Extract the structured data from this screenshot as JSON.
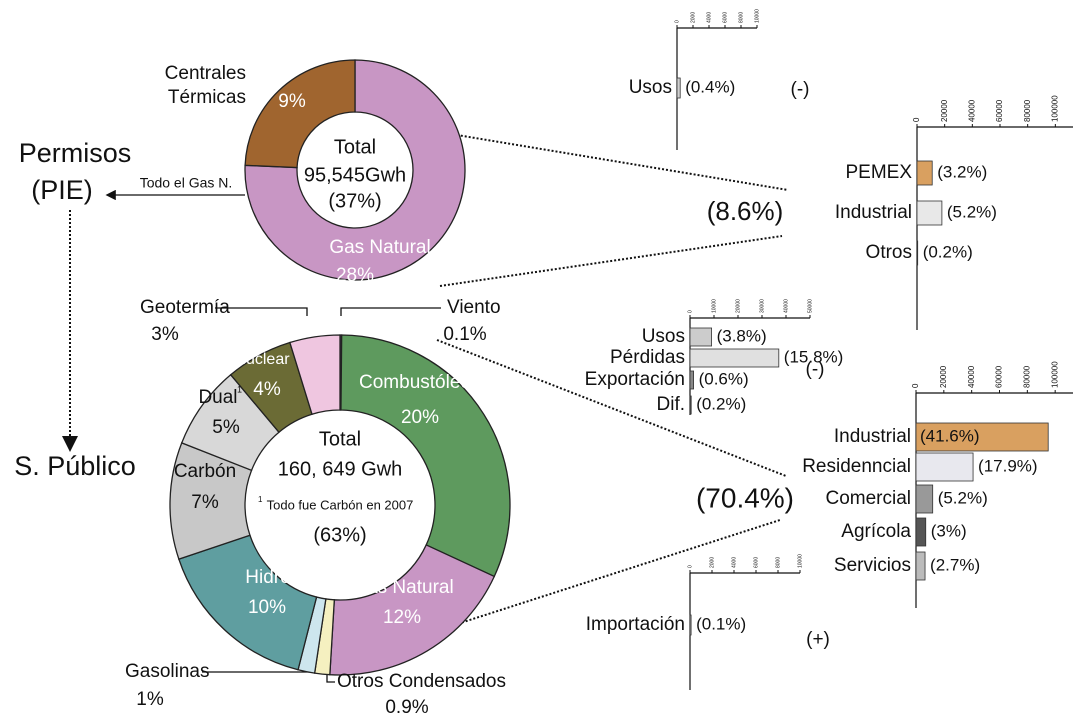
{
  "flow": {
    "source": "Permisos",
    "source_sub": "(PIE)",
    "transfer": "Todo el Gas N.",
    "target": "S. Público",
    "share_top": "(8.6%)",
    "share_bottom": "(70.4%)"
  },
  "chart_data": [
    {
      "type": "pie",
      "center_top": "Total",
      "center_total": "95,545Gwh",
      "center_share": "(37%)",
      "categories": [
        "Gas Natural",
        "Centrales Térmicas"
      ],
      "values": [
        28,
        9
      ],
      "value_labels": [
        "28%",
        "9%"
      ],
      "colors": [
        "#c896c4",
        "#a0652f"
      ]
    },
    {
      "type": "pie",
      "center_top": "Total",
      "center_total": "160, 649 Gwh",
      "note_mark": "1",
      "note": "Todo fue Carbón en 2007",
      "center_share": "(63%)",
      "categories": [
        "Viento",
        "Combustóleo",
        "Gas Natural",
        "Otros Condensados",
        "Gasolinas",
        "Hidro",
        "Carbón",
        "Dual",
        "Nuclear",
        "Geotermía"
      ],
      "values": [
        0.1,
        20,
        12,
        0.9,
        1,
        10,
        7,
        5,
        4,
        3
      ],
      "value_labels": [
        "0.1%",
        "20%",
        "12%",
        "0.9%",
        "1%",
        "10%",
        "7%",
        "5%",
        "4%",
        "3%"
      ],
      "colors": [
        "#4a2a5a",
        "#5e9a5e",
        "#c896c4",
        "#f5f0c0",
        "#cde6ee",
        "#5f9ea0",
        "#c8c8c8",
        "#d8d8d8",
        "#6b6b35",
        "#efc6e0"
      ]
    },
    {
      "type": "bar",
      "categories": [
        "Usos"
      ],
      "values": [
        400
      ],
      "share_labels": [
        "(0.4%)"
      ],
      "colors": [
        "#d0d0d0"
      ],
      "xlim": [
        0,
        10000
      ],
      "xticks": [
        0,
        2000,
        4000,
        6000,
        8000,
        10000
      ],
      "sign": "(-)"
    },
    {
      "type": "bar",
      "categories": [
        "PEMEX",
        "Industrial",
        "Otros"
      ],
      "values": [
        11000,
        18000,
        500
      ],
      "share_labels": [
        "(3.2%)",
        "(5.2%)",
        "(0.2%)"
      ],
      "colors": [
        "#d9a060",
        "#e8e8e8",
        "#555555"
      ],
      "xlim": [
        0,
        120000
      ],
      "xticks": [
        0,
        20000,
        40000,
        60000,
        80000,
        100000,
        120000
      ]
    },
    {
      "type": "bar",
      "categories": [
        "Usos",
        "Pérdidas",
        "Exportación",
        "Dif."
      ],
      "values": [
        9000,
        37000,
        1500,
        500
      ],
      "share_labels": [
        "(3.8%)",
        "(15.8%)",
        "(0.6%)",
        "(0.2%)"
      ],
      "colors": [
        "#cccccc",
        "#e0e0e0",
        "#888888",
        "#555555"
      ],
      "xlim": [
        0,
        50000
      ],
      "xticks": [
        0,
        10000,
        20000,
        30000,
        40000,
        50000
      ],
      "sign": "(-)"
    },
    {
      "type": "bar",
      "categories": [
        "Industrial",
        "Residenncial",
        "Comercial",
        "Agrícola",
        "Servicios"
      ],
      "values": [
        95000,
        41000,
        12000,
        7000,
        6500
      ],
      "share_labels": [
        "(41.6%)",
        "(17.9%)",
        "(5.2%)",
        "(3%)",
        "(2.7%)"
      ],
      "colors": [
        "#d9a060",
        "#e8e8ee",
        "#999999",
        "#555555",
        "#bbbbbb"
      ],
      "xlim": [
        0,
        120000
      ],
      "xticks": [
        0,
        20000,
        40000,
        60000,
        80000,
        100000,
        120000
      ]
    },
    {
      "type": "bar",
      "categories": [
        "Importación"
      ],
      "values": [
        100
      ],
      "share_labels": [
        "(0.1%)"
      ],
      "colors": [
        "#d0d0d0"
      ],
      "xlim": [
        0,
        10000
      ],
      "xticks": [
        0,
        2000,
        4000,
        6000,
        8000,
        10000
      ],
      "sign": "(+)"
    }
  ]
}
